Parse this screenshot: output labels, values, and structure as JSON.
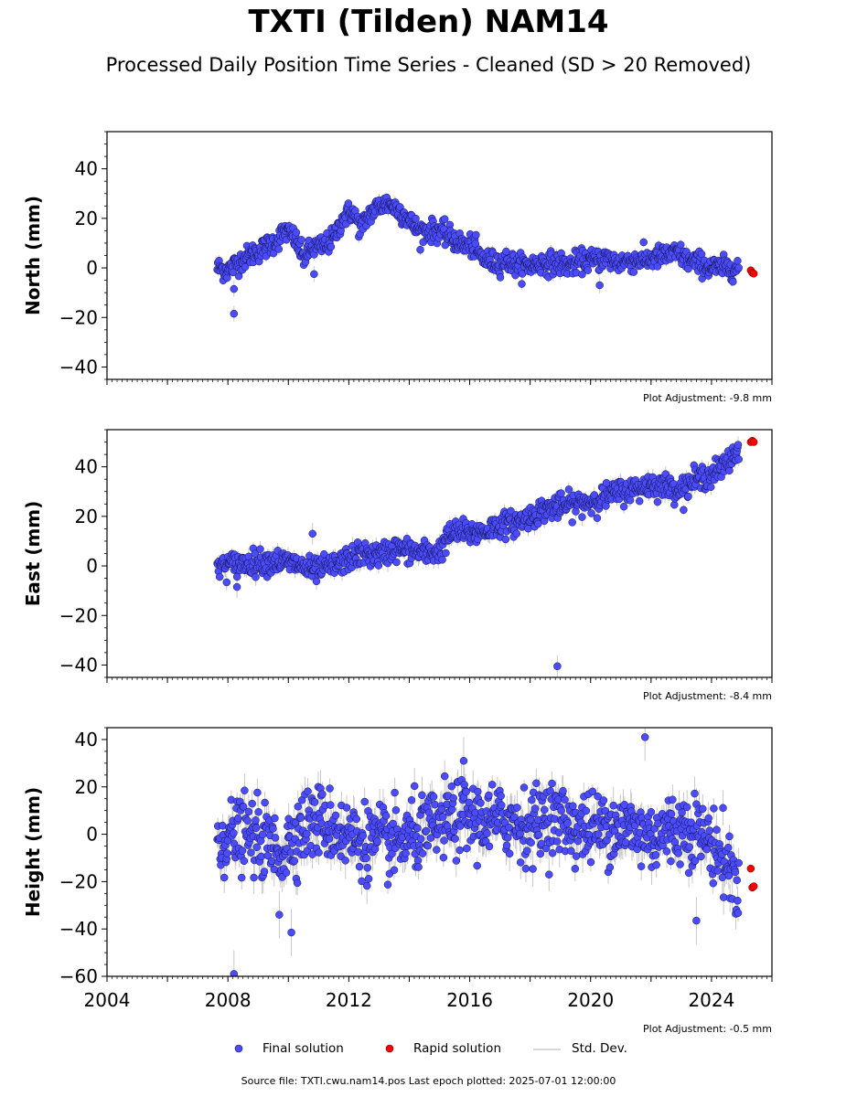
{
  "header": {
    "title": "TXTI (Tilden) NAM14",
    "subtitle": "Processed Daily Position Time Series - Cleaned (SD > 20 Removed)"
  },
  "legend": {
    "final": "Final solution",
    "rapid": "Rapid solution",
    "std": "Std. Dev."
  },
  "footer": "Source file: TXTI.cwu.nam14.pos  Last epoch plotted: 2025-07-01 12:00:00",
  "colors": {
    "final": "#4b4bff",
    "final_edge": "#14144a",
    "rapid": "#ff0000",
    "errorbar": "#c8c8c8"
  },
  "chart_data": [
    {
      "type": "scatter",
      "ylabel": "North (mm)",
      "xlim": [
        2004,
        2026
      ],
      "ylim": [
        -45,
        55
      ],
      "yticks": [
        -40,
        -20,
        0,
        20,
        40
      ],
      "xticks": [
        2004,
        2008,
        2012,
        2016,
        2020,
        2024
      ],
      "show_xtick_labels": false,
      "adjustment": "Plot Adjustment: -9.8 mm",
      "trend": [
        [
          2007.65,
          0
        ],
        [
          2008.0,
          -1
        ],
        [
          2008.3,
          2
        ],
        [
          2008.7,
          5
        ],
        [
          2009.2,
          8
        ],
        [
          2009.6,
          11
        ],
        [
          2009.9,
          15
        ],
        [
          2010.2,
          12
        ],
        [
          2010.5,
          4
        ],
        [
          2010.8,
          8
        ],
        [
          2011.2,
          9
        ],
        [
          2011.5,
          12
        ],
        [
          2011.8,
          20
        ],
        [
          2012.1,
          23
        ],
        [
          2012.4,
          16
        ],
        [
          2012.7,
          22
        ],
        [
          2013.0,
          25
        ],
        [
          2013.3,
          26
        ],
        [
          2013.7,
          23
        ],
        [
          2014.0,
          19
        ],
        [
          2014.3,
          15
        ],
        [
          2014.7,
          15
        ],
        [
          2015.0,
          15
        ],
        [
          2015.4,
          12
        ],
        [
          2015.8,
          9
        ],
        [
          2016.1,
          9
        ],
        [
          2016.4,
          4
        ],
        [
          2016.8,
          2
        ],
        [
          2017.2,
          3
        ],
        [
          2017.6,
          1
        ],
        [
          2018.0,
          1
        ],
        [
          2018.4,
          2
        ],
        [
          2018.9,
          2
        ],
        [
          2019.3,
          1
        ],
        [
          2019.7,
          3
        ],
        [
          2020.1,
          3
        ],
        [
          2020.5,
          4
        ],
        [
          2020.9,
          2
        ],
        [
          2021.3,
          3
        ],
        [
          2021.7,
          3
        ],
        [
          2022.1,
          4
        ],
        [
          2022.5,
          5
        ],
        [
          2022.9,
          6
        ],
        [
          2023.2,
          3
        ],
        [
          2023.6,
          2
        ],
        [
          2024.0,
          0
        ],
        [
          2024.4,
          0
        ],
        [
          2024.9,
          0
        ]
      ],
      "noise": 2.2,
      "errorbar_sd": 1.6,
      "outliers": [
        [
          2008.2,
          -8.5
        ],
        [
          2008.2,
          -18.5
        ],
        [
          2010.85,
          -2.5
        ],
        [
          2020.3,
          -7
        ]
      ],
      "rapid": [
        [
          2025.3,
          -1.0
        ],
        [
          2025.35,
          -2.0
        ],
        [
          2025.4,
          -2.3
        ]
      ]
    },
    {
      "type": "scatter",
      "ylabel": "East (mm)",
      "xlim": [
        2004,
        2026
      ],
      "ylim": [
        -45,
        55
      ],
      "yticks": [
        -40,
        -20,
        0,
        20,
        40
      ],
      "xticks": [
        2004,
        2008,
        2012,
        2016,
        2020,
        2024
      ],
      "show_xtick_labels": false,
      "adjustment": "Plot Adjustment: -8.4 mm",
      "trend": [
        [
          2007.65,
          0
        ],
        [
          2008.5,
          1
        ],
        [
          2009.5,
          2
        ],
        [
          2010.2,
          1
        ],
        [
          2010.8,
          -2
        ],
        [
          2011.5,
          0
        ],
        [
          2012.0,
          3
        ],
        [
          2012.5,
          5
        ],
        [
          2013.0,
          4
        ],
        [
          2013.5,
          7
        ],
        [
          2014.0,
          6
        ],
        [
          2014.6,
          5
        ],
        [
          2015.0,
          6
        ],
        [
          2015.3,
          12
        ],
        [
          2015.6,
          14
        ],
        [
          2016.0,
          13
        ],
        [
          2016.5,
          14
        ],
        [
          2017.0,
          17
        ],
        [
          2017.5,
          17
        ],
        [
          2018.0,
          20
        ],
        [
          2018.5,
          23
        ],
        [
          2019.0,
          24
        ],
        [
          2019.5,
          25
        ],
        [
          2020.0,
          26
        ],
        [
          2020.5,
          28
        ],
        [
          2021.0,
          30
        ],
        [
          2021.5,
          31
        ],
        [
          2022.0,
          33
        ],
        [
          2022.5,
          32
        ],
        [
          2023.0,
          31
        ],
        [
          2023.5,
          35
        ],
        [
          2024.0,
          37
        ],
        [
          2024.5,
          41
        ],
        [
          2024.9,
          47
        ]
      ],
      "noise": 2.4,
      "errorbar_sd": 2.2,
      "outliers": [
        [
          2008.3,
          -8.5
        ],
        [
          2010.8,
          13
        ],
        [
          2018.9,
          -40.5
        ]
      ],
      "rapid": [
        [
          2025.3,
          50.0
        ],
        [
          2025.35,
          50.5
        ],
        [
          2025.4,
          50.0
        ]
      ]
    },
    {
      "type": "scatter",
      "ylabel": "Height (mm)",
      "xlim": [
        2004,
        2026
      ],
      "ylim": [
        -60,
        45
      ],
      "yticks": [
        -60,
        -40,
        -20,
        0,
        20,
        40
      ],
      "xticks": [
        2004,
        2008,
        2012,
        2016,
        2020,
        2024
      ],
      "xticklabels": [
        "2004",
        "2008",
        "2012",
        "2016",
        "2020",
        "2024"
      ],
      "show_xtick_labels": true,
      "adjustment": "Plot Adjustment: -0.5 mm",
      "trend": [
        [
          2007.65,
          -2
        ],
        [
          2008.5,
          0
        ],
        [
          2009.2,
          -3
        ],
        [
          2009.8,
          -8
        ],
        [
          2010.3,
          2
        ],
        [
          2011.0,
          6
        ],
        [
          2011.6,
          2
        ],
        [
          2012.2,
          -2
        ],
        [
          2012.8,
          -3
        ],
        [
          2013.5,
          -4
        ],
        [
          2014.3,
          0
        ],
        [
          2015.0,
          4
        ],
        [
          2015.8,
          8
        ],
        [
          2016.5,
          5
        ],
        [
          2017.3,
          6
        ],
        [
          2018.0,
          3
        ],
        [
          2018.6,
          8
        ],
        [
          2019.3,
          4
        ],
        [
          2020.0,
          2
        ],
        [
          2020.7,
          4
        ],
        [
          2021.4,
          2
        ],
        [
          2022.0,
          -1
        ],
        [
          2022.7,
          2
        ],
        [
          2023.4,
          3
        ],
        [
          2024.0,
          -4
        ],
        [
          2024.5,
          -12
        ],
        [
          2024.9,
          -22
        ]
      ],
      "noise": 7.5,
      "errorbar_sd": 5,
      "outliers": [
        [
          2008.2,
          -59
        ],
        [
          2009.7,
          -34
        ],
        [
          2010.1,
          -41.5
        ],
        [
          2021.8,
          41
        ],
        [
          2023.5,
          -36.5
        ],
        [
          2015.8,
          31
        ]
      ],
      "rapid": [
        [
          2025.3,
          -14.5
        ],
        [
          2025.35,
          -22.5
        ],
        [
          2025.4,
          -22.0
        ]
      ]
    }
  ]
}
